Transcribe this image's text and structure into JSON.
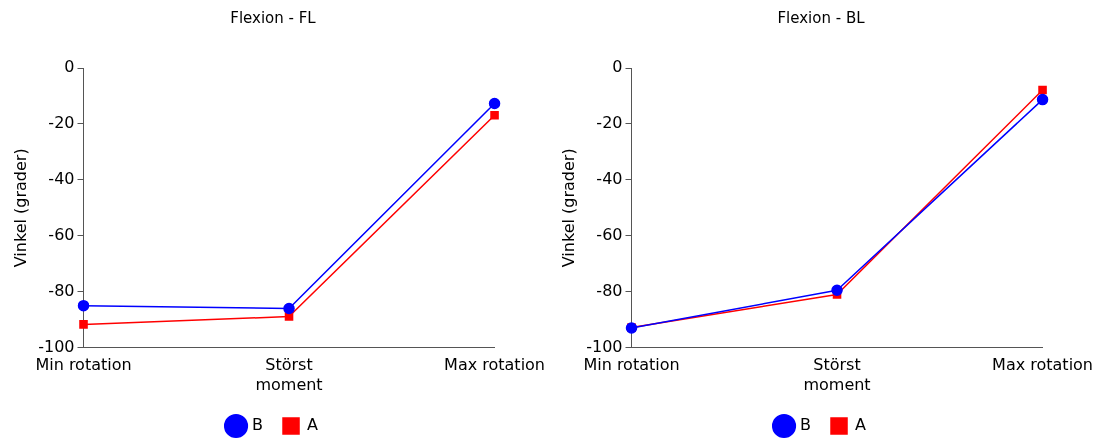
{
  "chart_data": [
    {
      "type": "line",
      "title": "Flexion - FL",
      "ylabel": "Vinkel (grader)",
      "categories": [
        "Min rotation",
        "Störst moment",
        "Max rotation"
      ],
      "series": [
        {
          "name": "A",
          "color": "#ff0000",
          "marker": "square",
          "values": [
            -91.7,
            -88.9,
            -16.9
          ]
        },
        {
          "name": "B",
          "color": "#0000ff",
          "marker": "circle",
          "values": [
            -85,
            -86,
            -12.7
          ]
        }
      ],
      "ylim": [
        -100,
        0
      ],
      "yticks": [
        -100,
        -80,
        -60,
        -40,
        -20,
        0
      ],
      "grid": false,
      "legend": "bottom",
      "line_style": "solid"
    },
    {
      "type": "line",
      "title": "Flexion - BL",
      "ylabel": "Vinkel (grader)",
      "categories": [
        "Min rotation",
        "Störst moment",
        "Max rotation"
      ],
      "series": [
        {
          "name": "A",
          "color": "#ff0000",
          "marker": "square",
          "values": [
            -92.8,
            -81,
            -7.9
          ]
        },
        {
          "name": "B",
          "color": "#0000ff",
          "marker": "circle",
          "values": [
            -93,
            -79.5,
            -11.3
          ]
        }
      ],
      "ylim": [
        -100,
        0
      ],
      "yticks": [
        -100,
        -80,
        -60,
        -40,
        -20,
        0
      ],
      "grid": false,
      "legend": "bottom",
      "line_style": "solid"
    }
  ]
}
